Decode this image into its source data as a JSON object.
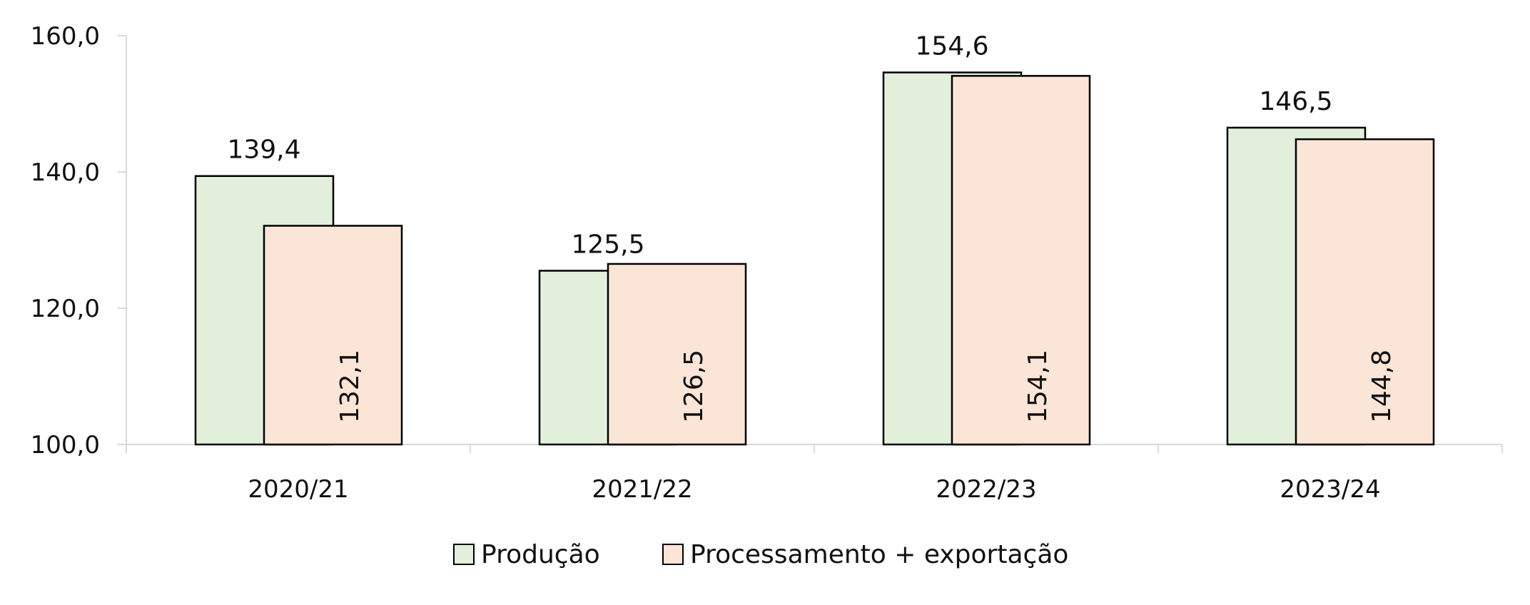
{
  "chart_data": {
    "type": "bar",
    "title": "",
    "xlabel": "",
    "ylabel": "",
    "categories": [
      "2020/21",
      "2021/22",
      "2022/23",
      "2023/24"
    ],
    "series": [
      {
        "name": "Produção",
        "values": [
          139.4,
          125.5,
          154.6,
          146.5
        ],
        "labels": [
          "139,4",
          "125,5",
          "154,6",
          "146,5"
        ],
        "color": "#E2EFDA"
      },
      {
        "name": "Processamento + exportação",
        "values": [
          132.1,
          126.5,
          154.1,
          144.8
        ],
        "labels": [
          "132,1",
          "126,5",
          "154,1",
          "144,8"
        ],
        "color": "#FBE5D6"
      }
    ],
    "ylim": [
      100,
      160
    ],
    "yticks": [
      100,
      120,
      140,
      160
    ],
    "ytick_labels": [
      "100,0",
      "120,0",
      "140,0",
      "160,0"
    ],
    "grid": false,
    "legend_position": "bottom",
    "bar_border_color": "#000000",
    "axis_color": "#D9D9D9"
  }
}
